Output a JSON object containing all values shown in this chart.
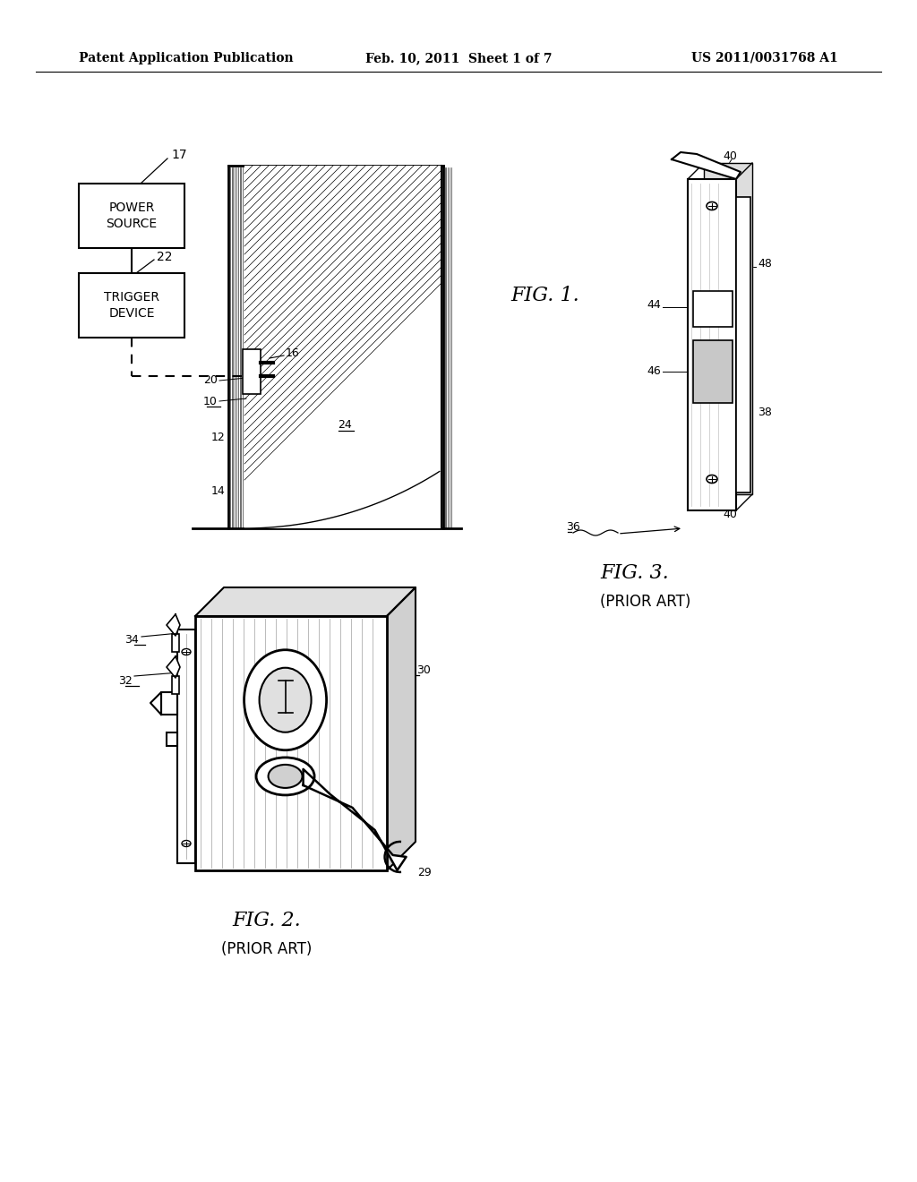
{
  "background_color": "#ffffff",
  "header_left": "Patent Application Publication",
  "header_center": "Feb. 10, 2011  Sheet 1 of 7",
  "header_right": "US 2011/0031768 A1",
  "fig1_label": "FIG. 1.",
  "fig2_label": "FIG. 2.",
  "fig2_sub": "(PRIOR ART)",
  "fig3_label": "FIG. 3.",
  "fig3_sub": "(PRIOR ART)"
}
